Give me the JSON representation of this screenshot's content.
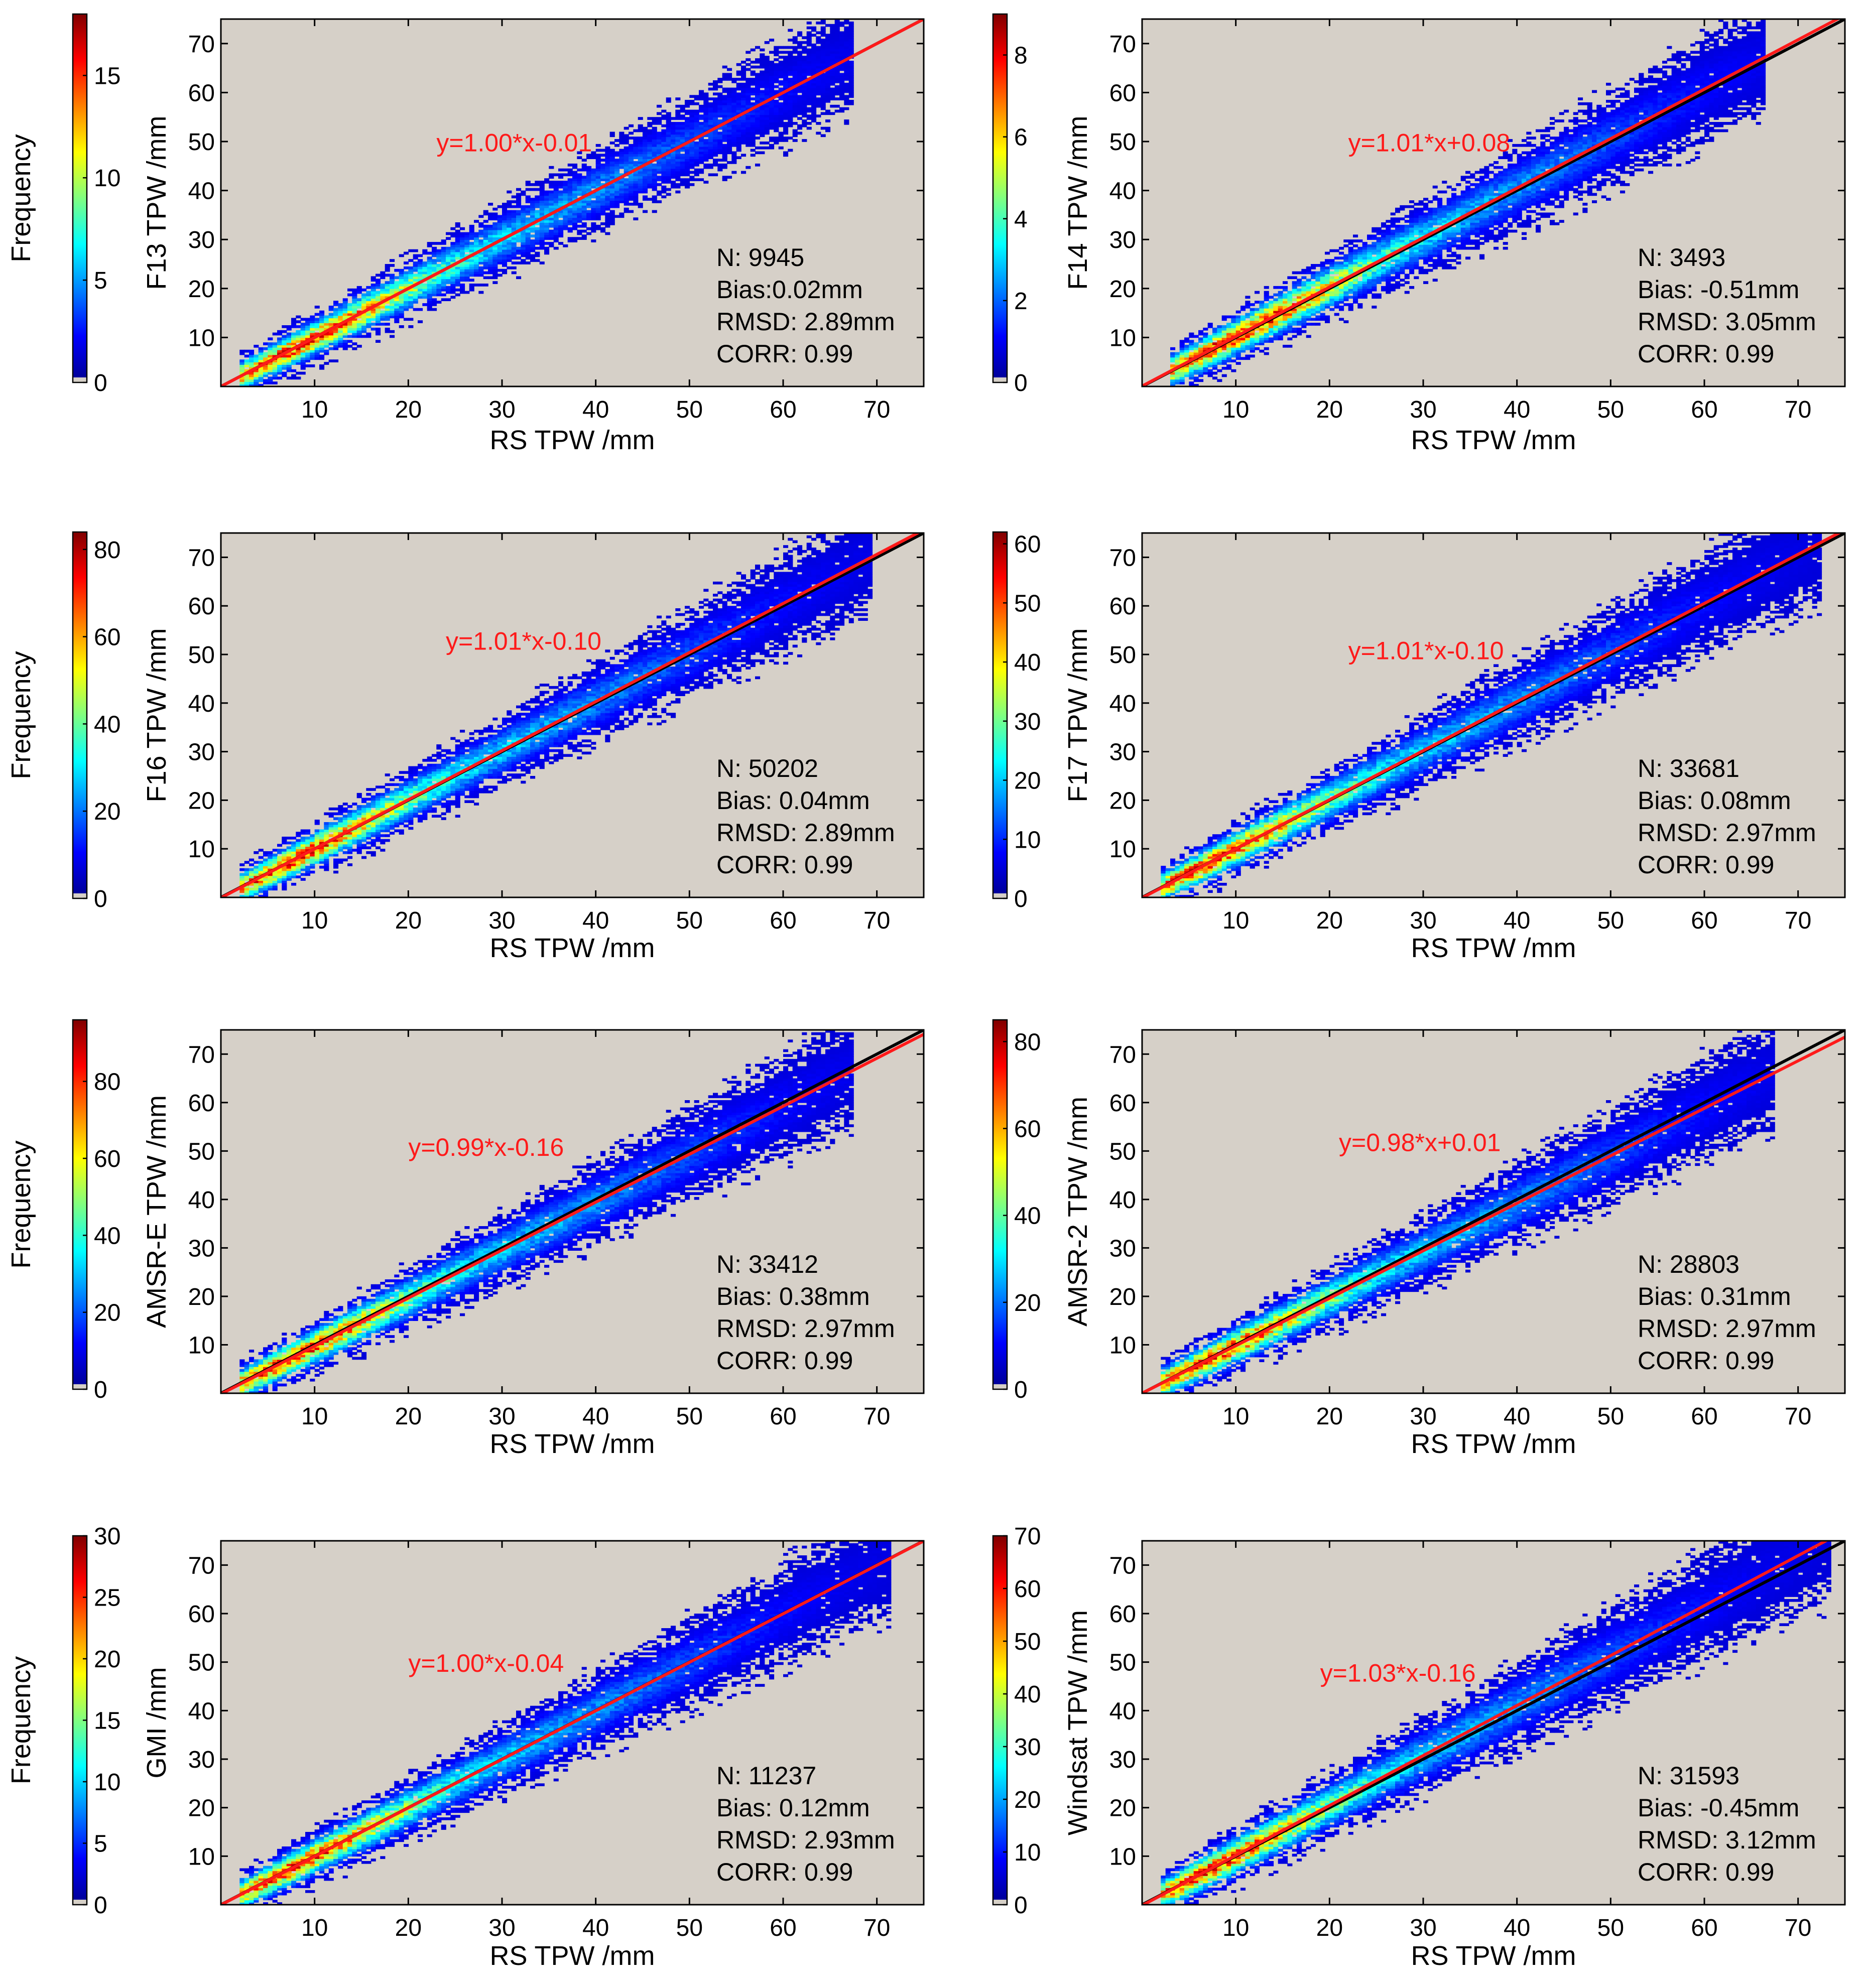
{
  "chart_data": [
    {
      "type": "heatmap",
      "panel_id": "f13",
      "xlabel": "RS TPW /mm",
      "ylabel": "F13 TPW /mm",
      "colorbar_label": "Frequency",
      "xlim": [
        0,
        75
      ],
      "ylim": [
        0,
        75
      ],
      "x_ticks": [
        "10",
        "20",
        "30",
        "40",
        "50",
        "60",
        "70"
      ],
      "y_ticks": [
        "10",
        "20",
        "30",
        "40",
        "50",
        "60",
        "70"
      ],
      "colorbar_range": [
        0,
        18
      ],
      "colorbar_ticks": [
        "0",
        "5",
        "10",
        "15"
      ],
      "fit_line": {
        "slope": 1.0,
        "intercept": -0.01,
        "label": "y=1.00*x-0.01",
        "color": "#ff1a1a"
      },
      "one_to_one_line": {
        "color": "#000000"
      },
      "stats": {
        "n": "N: 9945",
        "bias": "Bias:0.02mm",
        "rmsd": "RMSD: 2.89mm",
        "corr": "CORR: 0.99"
      },
      "density": {
        "xmin": 2,
        "xmax": 67,
        "peak_x": 7,
        "spread": 2.9,
        "bias": 0.02,
        "max_value": 18
      }
    },
    {
      "type": "heatmap",
      "panel_id": "f14",
      "xlabel": "RS TPW /mm",
      "ylabel": "F14 TPW /mm",
      "colorbar_label": "",
      "xlim": [
        0,
        75
      ],
      "ylim": [
        0,
        75
      ],
      "x_ticks": [
        "10",
        "20",
        "30",
        "40",
        "50",
        "60",
        "70"
      ],
      "y_ticks": [
        "10",
        "20",
        "30",
        "40",
        "50",
        "60",
        "70"
      ],
      "colorbar_range": [
        0,
        9
      ],
      "colorbar_ticks": [
        "0",
        "2",
        "4",
        "6",
        "8"
      ],
      "fit_line": {
        "slope": 1.01,
        "intercept": 0.08,
        "label": "y=1.01*x+0.08",
        "color": "#ff1a1a"
      },
      "one_to_one_line": {
        "color": "#000000"
      },
      "stats": {
        "n": "N: 3493",
        "bias": "Bias: -0.51mm",
        "rmsd": "RMSD: 3.05mm",
        "corr": "CORR: 0.99"
      },
      "density": {
        "xmin": 3,
        "xmax": 66,
        "peak_x": 9,
        "spread": 3.05,
        "bias": -0.51,
        "max_value": 9
      }
    },
    {
      "type": "heatmap",
      "panel_id": "f16",
      "xlabel": "RS TPW /mm",
      "ylabel": "F16 TPW /mm",
      "colorbar_label": "Frequency",
      "xlim": [
        0,
        75
      ],
      "ylim": [
        0,
        75
      ],
      "x_ticks": [
        "10",
        "20",
        "30",
        "40",
        "50",
        "60",
        "70"
      ],
      "y_ticks": [
        "10",
        "20",
        "30",
        "40",
        "50",
        "60",
        "70"
      ],
      "colorbar_range": [
        0,
        84
      ],
      "colorbar_ticks": [
        "0",
        "20",
        "40",
        "60",
        "80"
      ],
      "fit_line": {
        "slope": 1.01,
        "intercept": -0.1,
        "label": "y=1.01*x-0.10",
        "color": "#ff1a1a"
      },
      "one_to_one_line": {
        "color": "#000000"
      },
      "stats": {
        "n": "N: 50202",
        "bias": "Bias: 0.04mm",
        "rmsd": "RMSD: 2.89mm",
        "corr": "CORR: 0.99"
      },
      "density": {
        "xmin": 2,
        "xmax": 69,
        "peak_x": 6,
        "spread": 2.89,
        "bias": 0.04,
        "max_value": 84
      }
    },
    {
      "type": "heatmap",
      "panel_id": "f17",
      "xlabel": "RS TPW /mm",
      "ylabel": "F17 TPW /mm",
      "colorbar_label": "",
      "xlim": [
        0,
        75
      ],
      "ylim": [
        0,
        75
      ],
      "x_ticks": [
        "10",
        "20",
        "30",
        "40",
        "50",
        "60",
        "70"
      ],
      "y_ticks": [
        "10",
        "20",
        "30",
        "40",
        "50",
        "60",
        "70"
      ],
      "colorbar_range": [
        0,
        62
      ],
      "colorbar_ticks": [
        "0",
        "10",
        "20",
        "30",
        "40",
        "50",
        "60"
      ],
      "fit_line": {
        "slope": 1.01,
        "intercept": -0.1,
        "label": "y=1.01*x-0.10",
        "color": "#ff1a1a"
      },
      "one_to_one_line": {
        "color": "#000000"
      },
      "stats": {
        "n": "N: 33681",
        "bias": "Bias: 0.08mm",
        "rmsd": "RMSD: 2.97mm",
        "corr": "CORR: 0.99"
      },
      "density": {
        "xmin": 2,
        "xmax": 72,
        "peak_x": 6,
        "spread": 2.97,
        "bias": 0.08,
        "max_value": 62
      }
    },
    {
      "type": "heatmap",
      "panel_id": "amsre",
      "xlabel": "RS TPW /mm",
      "ylabel": "AMSR-E TPW /mm",
      "colorbar_label": "Frequency",
      "xlim": [
        0,
        75
      ],
      "ylim": [
        0,
        75
      ],
      "x_ticks": [
        "10",
        "20",
        "30",
        "40",
        "50",
        "60",
        "70"
      ],
      "y_ticks": [
        "10",
        "20",
        "30",
        "40",
        "50",
        "60",
        "70"
      ],
      "colorbar_range": [
        0,
        96
      ],
      "colorbar_ticks": [
        "0",
        "20",
        "40",
        "60",
        "80"
      ],
      "fit_line": {
        "slope": 0.99,
        "intercept": -0.16,
        "label": "y=0.99*x-0.16",
        "color": "#ff1a1a"
      },
      "one_to_one_line": {
        "color": "#000000"
      },
      "stats": {
        "n": "N: 33412",
        "bias": "Bias: 0.38mm",
        "rmsd": "RMSD: 2.97mm",
        "corr": "CORR: 0.99"
      },
      "density": {
        "xmin": 2,
        "xmax": 67,
        "peak_x": 6,
        "spread": 2.97,
        "bias": 0.38,
        "max_value": 96
      }
    },
    {
      "type": "heatmap",
      "panel_id": "amsr2",
      "xlabel": "RS TPW /mm",
      "ylabel": "AMSR-2 TPW /mm",
      "colorbar_label": "",
      "xlim": [
        0,
        75
      ],
      "ylim": [
        0,
        75
      ],
      "x_ticks": [
        "10",
        "20",
        "30",
        "40",
        "50",
        "60",
        "70"
      ],
      "y_ticks": [
        "10",
        "20",
        "30",
        "40",
        "50",
        "60",
        "70"
      ],
      "colorbar_range": [
        0,
        85
      ],
      "colorbar_ticks": [
        "0",
        "20",
        "40",
        "60",
        "80"
      ],
      "fit_line": {
        "slope": 0.98,
        "intercept": 0.01,
        "label": "y=0.98*x+0.01",
        "color": "#ff1a1a"
      },
      "one_to_one_line": {
        "color": "#000000"
      },
      "stats": {
        "n": "N: 28803",
        "bias": "Bias: 0.31mm",
        "rmsd": "RMSD: 2.97mm",
        "corr": "CORR: 0.99"
      },
      "density": {
        "xmin": 2,
        "xmax": 67,
        "peak_x": 6,
        "spread": 2.97,
        "bias": 0.31,
        "max_value": 85
      }
    },
    {
      "type": "heatmap",
      "panel_id": "gmi",
      "xlabel": "RS TPW /mm",
      "ylabel": "GMI /mm",
      "colorbar_label": "Frequency",
      "xlim": [
        0,
        75
      ],
      "ylim": [
        0,
        75
      ],
      "x_ticks": [
        "10",
        "20",
        "30",
        "40",
        "50",
        "60",
        "70"
      ],
      "y_ticks": [
        "10",
        "20",
        "30",
        "40",
        "50",
        "60",
        "70"
      ],
      "colorbar_range": [
        0,
        30
      ],
      "colorbar_ticks": [
        "0",
        "5",
        "10",
        "15",
        "20",
        "25",
        "30"
      ],
      "fit_line": {
        "slope": 1.0,
        "intercept": -0.04,
        "label": "y=1.00*x-0.04",
        "color": "#ff1a1a"
      },
      "one_to_one_line": {
        "color": "#000000"
      },
      "stats": {
        "n": "N: 11237",
        "bias": "Bias: 0.12mm",
        "rmsd": "RMSD: 2.93mm",
        "corr": "CORR: 0.99"
      },
      "density": {
        "xmin": 2,
        "xmax": 71,
        "peak_x": 6,
        "spread": 2.93,
        "bias": 0.12,
        "max_value": 30
      }
    },
    {
      "type": "heatmap",
      "panel_id": "windsat",
      "xlabel": "RS TPW /mm",
      "ylabel": "Windsat TPW /mm",
      "colorbar_label": "",
      "xlim": [
        0,
        75
      ],
      "ylim": [
        0,
        75
      ],
      "x_ticks": [
        "10",
        "20",
        "30",
        "40",
        "50",
        "60",
        "70"
      ],
      "y_ticks": [
        "10",
        "20",
        "30",
        "40",
        "50",
        "60",
        "70"
      ],
      "colorbar_range": [
        0,
        70
      ],
      "colorbar_ticks": [
        "0",
        "10",
        "20",
        "30",
        "40",
        "50",
        "60",
        "70"
      ],
      "fit_line": {
        "slope": 1.03,
        "intercept": -0.16,
        "label": "y=1.03*x-0.16",
        "color": "#ff1a1a"
      },
      "one_to_one_line": {
        "color": "#000000"
      },
      "stats": {
        "n": "N: 31593",
        "bias": "Bias: -0.45mm",
        "rmsd": "RMSD: 3.12mm",
        "corr": "CORR: 0.99"
      },
      "density": {
        "xmin": 2,
        "xmax": 73,
        "peak_x": 6,
        "spread": 3.12,
        "bias": -0.45,
        "max_value": 70
      }
    }
  ],
  "colors": {
    "plot_background": "#d6d0c8",
    "fit_line": "#ff1a1a",
    "one_to_one_line": "#000000",
    "fit_text": "#ff1a1a",
    "colormap": [
      "#00008f",
      "#0000ff",
      "#0080ff",
      "#00ffff",
      "#80ff80",
      "#ffff00",
      "#ff8000",
      "#ff0000",
      "#800000"
    ]
  }
}
